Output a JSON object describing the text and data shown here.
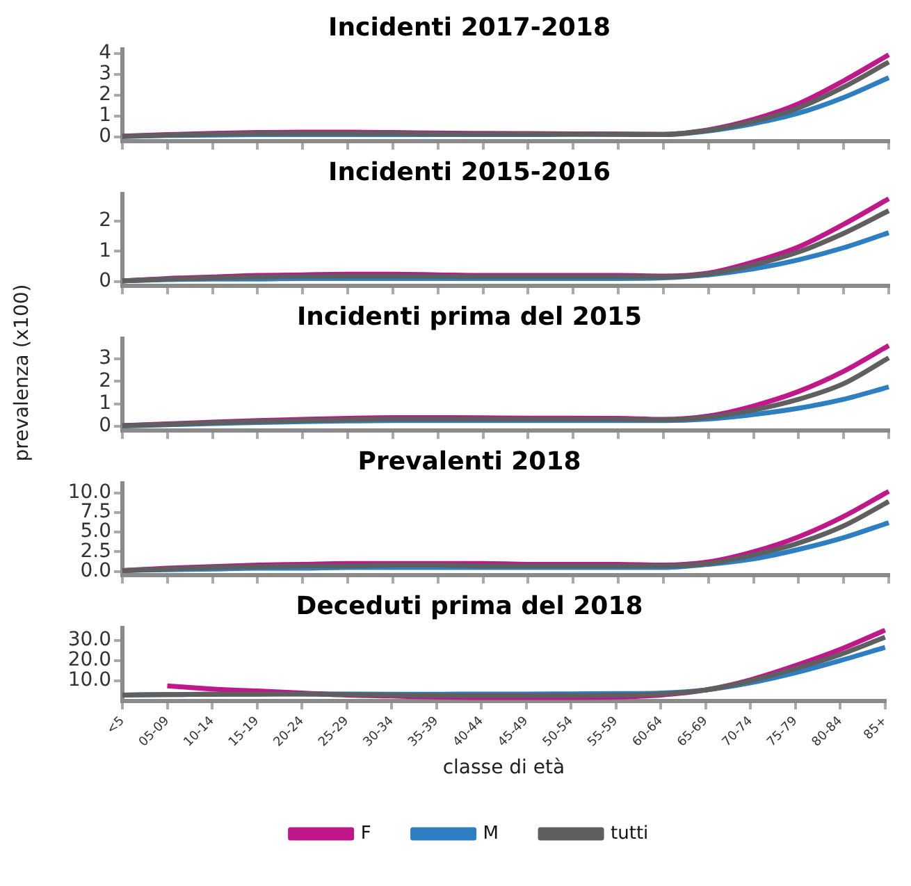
{
  "chart_data": [
    {
      "type": "line",
      "title": "Incidenti 2017-2018",
      "categories": [
        null,
        null,
        null,
        null,
        null,
        null,
        null,
        null,
        null,
        null,
        null,
        null,
        null,
        null,
        null,
        null,
        null,
        null
      ],
      "series": [
        {
          "color": "#c0178a",
          "values": [
            0.05,
            0.12,
            0.18,
            0.22,
            0.24,
            0.24,
            0.22,
            0.2,
            0.18,
            0.17,
            0.16,
            0.15,
            0.13,
            0.35,
            0.85,
            1.6,
            2.7,
            3.95
          ]
        },
        {
          "color": "#2d7fc1",
          "values": [
            0.03,
            0.08,
            0.1,
            0.12,
            0.12,
            0.12,
            0.12,
            0.12,
            0.12,
            0.12,
            0.13,
            0.13,
            0.12,
            0.3,
            0.65,
            1.15,
            1.9,
            2.85
          ]
        },
        {
          "color": "#5f5f5f",
          "values": [
            0.04,
            0.1,
            0.14,
            0.17,
            0.18,
            0.18,
            0.17,
            0.16,
            0.15,
            0.15,
            0.15,
            0.14,
            0.13,
            0.33,
            0.75,
            1.4,
            2.4,
            3.6
          ]
        }
      ],
      "ylim": [
        -0.2,
        4.2
      ],
      "yticks": [
        0,
        1,
        2,
        3,
        4
      ],
      "tick_labels": "y",
      "line_style": "solid",
      "marker": "none"
    },
    {
      "type": "line",
      "title": "Incidenti 2015-2016",
      "categories": [
        null,
        null,
        null,
        null,
        null,
        null,
        null,
        null,
        null,
        null,
        null,
        null,
        null,
        null,
        null,
        null,
        null,
        null
      ],
      "series": [
        {
          "color": "#c0178a",
          "values": [
            0.02,
            0.1,
            0.15,
            0.2,
            0.22,
            0.24,
            0.24,
            0.22,
            0.2,
            0.2,
            0.2,
            0.2,
            0.18,
            0.28,
            0.65,
            1.15,
            1.9,
            2.75
          ]
        },
        {
          "color": "#2d7fc1",
          "values": [
            0.02,
            0.06,
            0.08,
            0.08,
            0.1,
            0.1,
            0.1,
            0.1,
            0.1,
            0.1,
            0.1,
            0.1,
            0.12,
            0.22,
            0.42,
            0.72,
            1.12,
            1.62
          ]
        },
        {
          "color": "#5f5f5f",
          "values": [
            0.02,
            0.08,
            0.12,
            0.15,
            0.17,
            0.18,
            0.18,
            0.17,
            0.16,
            0.16,
            0.16,
            0.16,
            0.15,
            0.25,
            0.55,
            0.98,
            1.6,
            2.35
          ]
        }
      ],
      "ylim": [
        -0.15,
        2.9
      ],
      "yticks": [
        0,
        1,
        2
      ],
      "tick_labels": "y",
      "line_style": "solid",
      "marker": "none"
    },
    {
      "type": "line",
      "title": "Incidenti prima del 2015",
      "ylabel": "prevalenza (x100)",
      "categories": [
        null,
        null,
        null,
        null,
        null,
        null,
        null,
        null,
        null,
        null,
        null,
        null,
        null,
        null,
        null,
        null,
        null,
        null
      ],
      "series": [
        {
          "color": "#c0178a",
          "values": [
            0.02,
            0.1,
            0.18,
            0.25,
            0.3,
            0.35,
            0.38,
            0.38,
            0.37,
            0.36,
            0.36,
            0.35,
            0.3,
            0.45,
            0.9,
            1.55,
            2.45,
            3.6
          ]
        },
        {
          "color": "#2d7fc1",
          "values": [
            0.01,
            0.06,
            0.12,
            0.16,
            0.2,
            0.23,
            0.25,
            0.25,
            0.25,
            0.25,
            0.25,
            0.25,
            0.25,
            0.32,
            0.52,
            0.8,
            1.2,
            1.75
          ]
        },
        {
          "color": "#5f5f5f",
          "values": [
            0.02,
            0.08,
            0.15,
            0.2,
            0.25,
            0.29,
            0.31,
            0.31,
            0.31,
            0.3,
            0.3,
            0.3,
            0.28,
            0.4,
            0.72,
            1.2,
            1.9,
            3.05
          ]
        }
      ],
      "ylim": [
        -0.2,
        3.9
      ],
      "yticks": [
        0,
        1,
        2,
        3
      ],
      "tick_labels": "y",
      "line_style": "solid",
      "marker": "none"
    },
    {
      "type": "line",
      "title": "Prevalenti 2018",
      "categories": [
        null,
        null,
        null,
        null,
        null,
        null,
        null,
        null,
        null,
        null,
        null,
        null,
        null,
        null,
        null,
        null,
        null,
        null
      ],
      "series": [
        {
          "color": "#c0178a",
          "values": [
            0.1,
            0.4,
            0.6,
            0.8,
            0.9,
            1.0,
            1.0,
            1.0,
            1.0,
            0.9,
            0.9,
            0.9,
            0.8,
            1.2,
            2.5,
            4.4,
            7.0,
            10.2
          ]
        },
        {
          "color": "#2d7fc1",
          "values": [
            0.1,
            0.2,
            0.3,
            0.4,
            0.4,
            0.5,
            0.5,
            0.5,
            0.5,
            0.5,
            0.5,
            0.5,
            0.5,
            0.9,
            1.6,
            2.8,
            4.3,
            6.2
          ]
        },
        {
          "color": "#5f5f5f",
          "values": [
            0.1,
            0.3,
            0.5,
            0.6,
            0.7,
            0.7,
            0.8,
            0.8,
            0.7,
            0.7,
            0.7,
            0.7,
            0.7,
            1.0,
            2.1,
            3.6,
            5.8,
            8.9
          ]
        }
      ],
      "ylim": [
        -0.5,
        11.2
      ],
      "yticks": [
        {
          "value": 0,
          "label": "0.0"
        },
        {
          "value": 2.5,
          "label": "2.5"
        },
        {
          "value": 5,
          "label": "5.0"
        },
        {
          "value": 7.5,
          "label": "7.5"
        },
        {
          "value": 10,
          "label": "10.0"
        }
      ],
      "tick_labels": "y",
      "line_style": "solid",
      "marker": "none"
    },
    {
      "type": "line",
      "title": "Deceduti prima del 2018",
      "xlabel": "classe di età",
      "legend": "bottom",
      "categories": [
        "<5",
        "05-09",
        "10-14",
        "15-19",
        "20-24",
        "25-29",
        "30-34",
        "35-39",
        "40-44",
        "45-49",
        "50-54",
        "55-59",
        "60-64",
        "65-69",
        "70-74",
        "75-79",
        "80-84",
        "85+"
      ],
      "series": [
        {
          "name": "F",
          "color": "#c0178a",
          "values": [
            null,
            7.5,
            6,
            5,
            4,
            3,
            2.5,
            2,
            1.8,
            1.8,
            1.8,
            2,
            3,
            5.5,
            10.5,
            17.5,
            25.5,
            35
          ]
        },
        {
          "name": "M",
          "color": "#2d7fc1",
          "values": [
            3,
            3.2,
            3.4,
            3.5,
            3.6,
            3.5,
            3.4,
            3.4,
            3.5,
            3.5,
            3.6,
            3.7,
            4,
            5.5,
            9,
            14,
            20,
            26.5
          ]
        },
        {
          "name": "tutti",
          "color": "#5f5f5f",
          "values": [
            3,
            3.2,
            3.4,
            3.4,
            3.5,
            3.2,
            3,
            2.8,
            2.8,
            2.8,
            2.8,
            3,
            3.5,
            5.5,
            10,
            16,
            23,
            31.5
          ]
        }
      ],
      "ylim": [
        0,
        36
      ],
      "yticks": [
        {
          "value": 10,
          "label": "10.0"
        },
        {
          "value": 20,
          "label": "20.0"
        },
        {
          "value": 30,
          "label": "30.0"
        }
      ],
      "line_style": "solid",
      "marker": "none"
    }
  ]
}
